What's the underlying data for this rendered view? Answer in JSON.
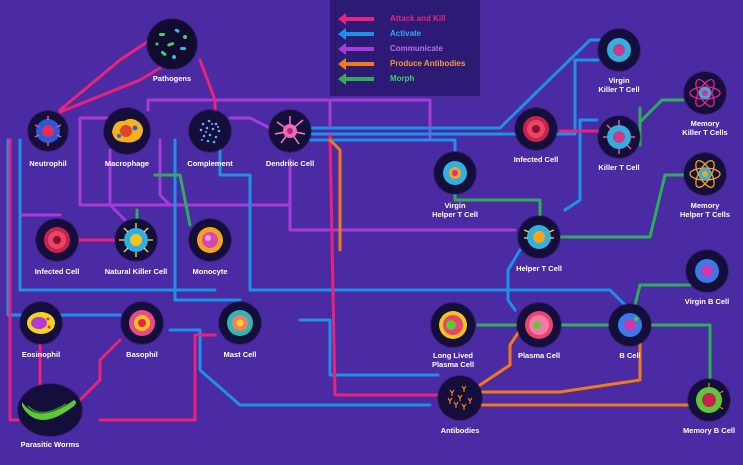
{
  "legend": [
    {
      "label": "Attack and Kill",
      "color": "#e8237c"
    },
    {
      "label": "Activate",
      "color": "#1e90e8"
    },
    {
      "label": "Communicate",
      "color": "#a63bd9"
    },
    {
      "label": "Produce Antibodies",
      "color": "#f07a1a"
    },
    {
      "label": "Morph",
      "color": "#2fae5a"
    }
  ],
  "cells": {
    "pathogens": "Pathogens",
    "neutrophil": "Neutrophil",
    "macrophage": "Macrophage",
    "complement": "Complement",
    "dendritic": "Dendritic Cell",
    "infected_left": "Infected Cell",
    "nk": "Natural Killer Cell",
    "monocyte": "Monocyte",
    "eosinophil": "Eosinophil",
    "basophil": "Basophil",
    "mast": "Mast Cell",
    "worms": "Parasitic Worms",
    "virgin_killer": "Virgin\nKiller T Cell",
    "infected_right": "Infected Cell",
    "killer_t": "Killer T Cell",
    "memory_killer": "Memory\nKiller T Cells",
    "virgin_helper": "Virgin\nHelper T Cell",
    "memory_helper": "Memory\nHelper T Cells",
    "helper_t": "Helper T Cell",
    "virgin_b": "Virgin B Cell",
    "long_plasma": "Long Lived\nPlasma Cell",
    "plasma": "Plasma Cell",
    "b_cell": "B Cell",
    "antibodies": "Antibodies",
    "memory_b": "Memory B Cell"
  }
}
